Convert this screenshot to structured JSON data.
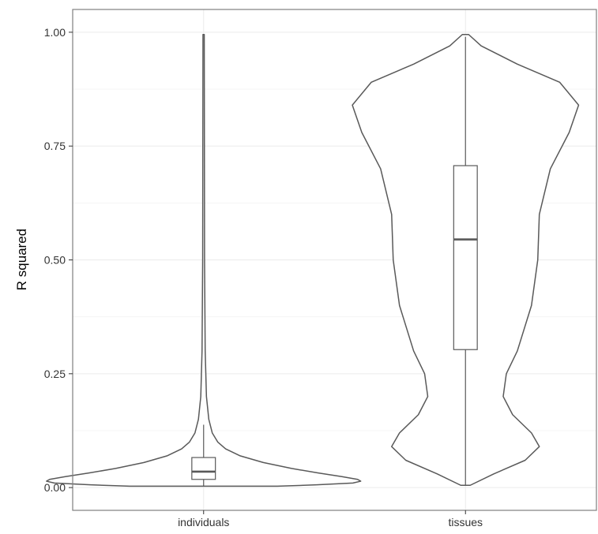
{
  "chart_data": {
    "type": "violin",
    "title": "",
    "xlabel": "",
    "ylabel": "R squared",
    "ylim": [
      -0.05,
      1.05
    ],
    "yticks": [
      {
        "value": 0.0,
        "label": "0.00"
      },
      {
        "value": 0.25,
        "label": "0.25"
      },
      {
        "value": 0.5,
        "label": "0.50"
      },
      {
        "value": 0.75,
        "label": "0.75"
      },
      {
        "value": 1.0,
        "label": "1.00"
      }
    ],
    "grid": true,
    "legend": "none",
    "colors": {
      "line": "#595959",
      "grid": "#ebebeb",
      "frame": "#7f7f7f",
      "fill": "#ffffff"
    },
    "categories": [
      "individuals",
      "tissues"
    ],
    "groups": [
      {
        "category": "individuals",
        "box": {
          "whisker_low": 0.003,
          "q1": 0.018,
          "median": 0.035,
          "q3": 0.066,
          "whisker_high": 0.138
        },
        "violin": {
          "min": 0.003,
          "max": 0.995,
          "profile": [
            [
              0.003,
              0.47
            ],
            [
              0.006,
              0.72
            ],
            [
              0.01,
              0.95
            ],
            [
              0.014,
              1.0
            ],
            [
              0.018,
              0.98
            ],
            [
              0.024,
              0.88
            ],
            [
              0.032,
              0.73
            ],
            [
              0.042,
              0.56
            ],
            [
              0.055,
              0.38
            ],
            [
              0.07,
              0.23
            ],
            [
              0.085,
              0.14
            ],
            [
              0.1,
              0.09
            ],
            [
              0.12,
              0.055
            ],
            [
              0.15,
              0.033
            ],
            [
              0.2,
              0.018
            ],
            [
              0.3,
              0.01
            ],
            [
              0.5,
              0.006
            ],
            [
              0.75,
              0.005
            ],
            [
              0.995,
              0.004
            ]
          ]
        }
      },
      {
        "category": "tissues",
        "box": {
          "whisker_low": 0.005,
          "q1": 0.303,
          "median": 0.545,
          "q3": 0.707,
          "whisker_high": 0.99
        },
        "violin": {
          "min": 0.005,
          "max": 0.995,
          "profile": [
            [
              0.005,
              0.03
            ],
            [
              0.03,
              0.18
            ],
            [
              0.06,
              0.38
            ],
            [
              0.09,
              0.47
            ],
            [
              0.12,
              0.42
            ],
            [
              0.16,
              0.3
            ],
            [
              0.2,
              0.24
            ],
            [
              0.25,
              0.26
            ],
            [
              0.3,
              0.33
            ],
            [
              0.4,
              0.42
            ],
            [
              0.5,
              0.46
            ],
            [
              0.6,
              0.47
            ],
            [
              0.7,
              0.54
            ],
            [
              0.78,
              0.66
            ],
            [
              0.84,
              0.72
            ],
            [
              0.89,
              0.6
            ],
            [
              0.93,
              0.33
            ],
            [
              0.97,
              0.1
            ],
            [
              0.995,
              0.02
            ]
          ]
        }
      }
    ]
  }
}
